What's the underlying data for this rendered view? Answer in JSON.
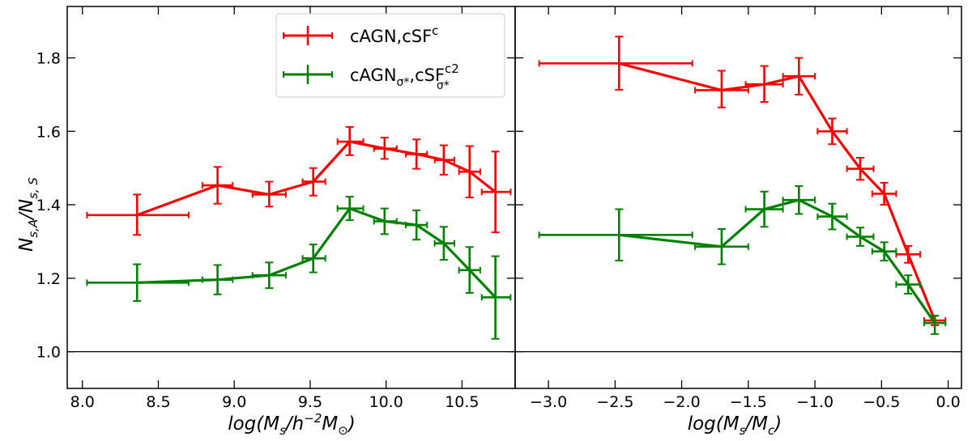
{
  "chart_data": [
    {
      "type": "line",
      "panel": "left",
      "xlabel": "log(M_s/h^-2 M_sun)",
      "ylabel": "N_s,A/N_s,S",
      "xlim": [
        7.9,
        10.85
      ],
      "ylim": [
        0.9,
        1.94
      ],
      "xticks": [
        8.0,
        8.5,
        9.0,
        9.5,
        10.0,
        10.5
      ],
      "xtick_labels": [
        "8.0",
        "8.5",
        "9.0",
        "9.5",
        "10.0",
        "10.5"
      ],
      "yticks": [
        1.0,
        1.2,
        1.4,
        1.6,
        1.8
      ],
      "ytick_labels": [
        "1.0",
        "1.2",
        "1.4",
        "1.6",
        "1.8"
      ],
      "reference_line": 1.0,
      "series": [
        {
          "name": "cAGN,cSF^c",
          "color": "#ff0000",
          "points": [
            {
              "x": 8.36,
              "y": 1.372,
              "xlo": 8.03,
              "xhi": 8.7,
              "ylo": 1.318,
              "yhi": 1.428
            },
            {
              "x": 8.89,
              "y": 1.453,
              "xlo": 8.79,
              "xhi": 8.99,
              "ylo": 1.403,
              "yhi": 1.503
            },
            {
              "x": 9.23,
              "y": 1.428,
              "xlo": 9.12,
              "xhi": 9.34,
              "ylo": 1.395,
              "yhi": 1.463
            },
            {
              "x": 9.52,
              "y": 1.463,
              "xlo": 9.45,
              "xhi": 9.6,
              "ylo": 1.425,
              "yhi": 1.5
            },
            {
              "x": 9.76,
              "y": 1.572,
              "xlo": 9.68,
              "xhi": 9.85,
              "ylo": 1.535,
              "yhi": 1.612
            },
            {
              "x": 9.99,
              "y": 1.553,
              "xlo": 9.92,
              "xhi": 10.07,
              "ylo": 1.525,
              "yhi": 1.583
            },
            {
              "x": 10.2,
              "y": 1.538,
              "xlo": 10.13,
              "xhi": 10.27,
              "ylo": 1.498,
              "yhi": 1.578
            },
            {
              "x": 10.38,
              "y": 1.522,
              "xlo": 10.32,
              "xhi": 10.45,
              "ylo": 1.482,
              "yhi": 1.562
            },
            {
              "x": 10.55,
              "y": 1.49,
              "xlo": 10.48,
              "xhi": 10.62,
              "ylo": 1.42,
              "yhi": 1.56
            },
            {
              "x": 10.72,
              "y": 1.435,
              "xlo": 10.63,
              "xhi": 10.82,
              "ylo": 1.325,
              "yhi": 1.545
            }
          ]
        },
        {
          "name": "cAGN_σ*,cSF^c2_σ*",
          "color": "#008000",
          "points": [
            {
              "x": 8.36,
              "y": 1.188,
              "xlo": 8.03,
              "xhi": 8.7,
              "ylo": 1.138,
              "yhi": 1.238
            },
            {
              "x": 8.89,
              "y": 1.196,
              "xlo": 8.79,
              "xhi": 8.99,
              "ylo": 1.156,
              "yhi": 1.236
            },
            {
              "x": 9.23,
              "y": 1.208,
              "xlo": 9.12,
              "xhi": 9.34,
              "ylo": 1.173,
              "yhi": 1.243
            },
            {
              "x": 9.52,
              "y": 1.254,
              "xlo": 9.45,
              "xhi": 9.6,
              "ylo": 1.216,
              "yhi": 1.292
            },
            {
              "x": 9.76,
              "y": 1.39,
              "xlo": 9.68,
              "xhi": 9.85,
              "ylo": 1.358,
              "yhi": 1.422
            },
            {
              "x": 9.99,
              "y": 1.355,
              "xlo": 9.92,
              "xhi": 10.07,
              "ylo": 1.32,
              "yhi": 1.39
            },
            {
              "x": 10.2,
              "y": 1.345,
              "xlo": 10.13,
              "xhi": 10.27,
              "ylo": 1.305,
              "yhi": 1.385
            },
            {
              "x": 10.38,
              "y": 1.295,
              "xlo": 10.32,
              "xhi": 10.45,
              "ylo": 1.25,
              "yhi": 1.34
            },
            {
              "x": 10.55,
              "y": 1.222,
              "xlo": 10.48,
              "xhi": 10.62,
              "ylo": 1.16,
              "yhi": 1.285
            },
            {
              "x": 10.72,
              "y": 1.148,
              "xlo": 10.63,
              "xhi": 10.82,
              "ylo": 1.035,
              "yhi": 1.26
            }
          ]
        }
      ]
    },
    {
      "type": "line",
      "panel": "right",
      "xlabel": "log(M_s/M_c)",
      "ylabel": "",
      "xlim": [
        -3.25,
        0.1
      ],
      "ylim": [
        0.9,
        1.94
      ],
      "xticks": [
        -3.0,
        -2.5,
        -2.0,
        -1.5,
        -1.0,
        -0.5,
        0.0
      ],
      "xtick_labels": [
        "−3.0",
        "−2.5",
        "−2.0",
        "−1.5",
        "−1.0",
        "−0.5",
        "0.0"
      ],
      "yticks": [
        1.0,
        1.2,
        1.4,
        1.6,
        1.8
      ],
      "reference_line": 1.0,
      "series": [
        {
          "name": "cAGN,cSF^c",
          "color": "#ff0000",
          "points": [
            {
              "x": -2.47,
              "y": 1.785,
              "xlo": -3.07,
              "xhi": -1.92,
              "ylo": 1.713,
              "yhi": 1.858
            },
            {
              "x": -1.7,
              "y": 1.712,
              "xlo": -1.9,
              "xhi": -1.5,
              "ylo": 1.665,
              "yhi": 1.765
            },
            {
              "x": -1.38,
              "y": 1.728,
              "xlo": -1.52,
              "xhi": -1.24,
              "ylo": 1.68,
              "yhi": 1.778
            },
            {
              "x": -1.12,
              "y": 1.75,
              "xlo": -1.24,
              "xhi": -1.0,
              "ylo": 1.7,
              "yhi": 1.8
            },
            {
              "x": -0.87,
              "y": 1.6,
              "xlo": -0.98,
              "xhi": -0.76,
              "ylo": 1.565,
              "yhi": 1.635
            },
            {
              "x": -0.66,
              "y": 1.498,
              "xlo": -0.76,
              "xhi": -0.56,
              "ylo": 1.468,
              "yhi": 1.528
            },
            {
              "x": -0.48,
              "y": 1.43,
              "xlo": -0.57,
              "xhi": -0.39,
              "ylo": 1.4,
              "yhi": 1.46
            },
            {
              "x": -0.3,
              "y": 1.265,
              "xlo": -0.39,
              "xhi": -0.21,
              "ylo": 1.242,
              "yhi": 1.288
            },
            {
              "x": -0.1,
              "y": 1.085,
              "xlo": -0.18,
              "xhi": -0.02,
              "ylo": 1.072,
              "yhi": 1.098
            }
          ]
        },
        {
          "name": "cAGN_σ*,cSF^c2_σ*",
          "color": "#008000",
          "points": [
            {
              "x": -2.47,
              "y": 1.318,
              "xlo": -3.07,
              "xhi": -1.92,
              "ylo": 1.248,
              "yhi": 1.388
            },
            {
              "x": -1.7,
              "y": 1.286,
              "xlo": -1.9,
              "xhi": -1.5,
              "ylo": 1.238,
              "yhi": 1.334
            },
            {
              "x": -1.38,
              "y": 1.388,
              "xlo": -1.52,
              "xhi": -1.24,
              "ylo": 1.34,
              "yhi": 1.436
            },
            {
              "x": -1.12,
              "y": 1.413,
              "xlo": -1.24,
              "xhi": -1.0,
              "ylo": 1.375,
              "yhi": 1.451
            },
            {
              "x": -0.87,
              "y": 1.368,
              "xlo": -0.98,
              "xhi": -0.76,
              "ylo": 1.333,
              "yhi": 1.403
            },
            {
              "x": -0.66,
              "y": 1.313,
              "xlo": -0.76,
              "xhi": -0.56,
              "ylo": 1.288,
              "yhi": 1.338
            },
            {
              "x": -0.48,
              "y": 1.273,
              "xlo": -0.57,
              "xhi": -0.39,
              "ylo": 1.248,
              "yhi": 1.298
            },
            {
              "x": -0.3,
              "y": 1.183,
              "xlo": -0.39,
              "xhi": -0.21,
              "ylo": 1.158,
              "yhi": 1.208
            },
            {
              "x": -0.1,
              "y": 1.078,
              "xlo": -0.18,
              "xhi": -0.02,
              "ylo": 1.048,
              "yhi": 1.098
            }
          ]
        }
      ]
    }
  ],
  "legend": {
    "placement": "upper-center of left panel",
    "entries": [
      {
        "base": "cAGN,cSF",
        "sup": "c",
        "color": "#ff0000"
      },
      {
        "base_1": "cAGN",
        "sub_1": "σ*",
        "mid": ",cSF",
        "sup": "c2",
        "sub_2": "σ*",
        "color": "#008000"
      }
    ]
  },
  "labels": {
    "ylabel_parts": [
      "N",
      "s,A",
      "/N",
      "s, S"
    ],
    "left_xlabel_parts": [
      "log(M",
      "s",
      "/h",
      "−2",
      "M",
      "⊙",
      ")"
    ],
    "right_xlabel_parts": [
      "log(M",
      "s",
      "/M",
      "c",
      ")"
    ]
  }
}
